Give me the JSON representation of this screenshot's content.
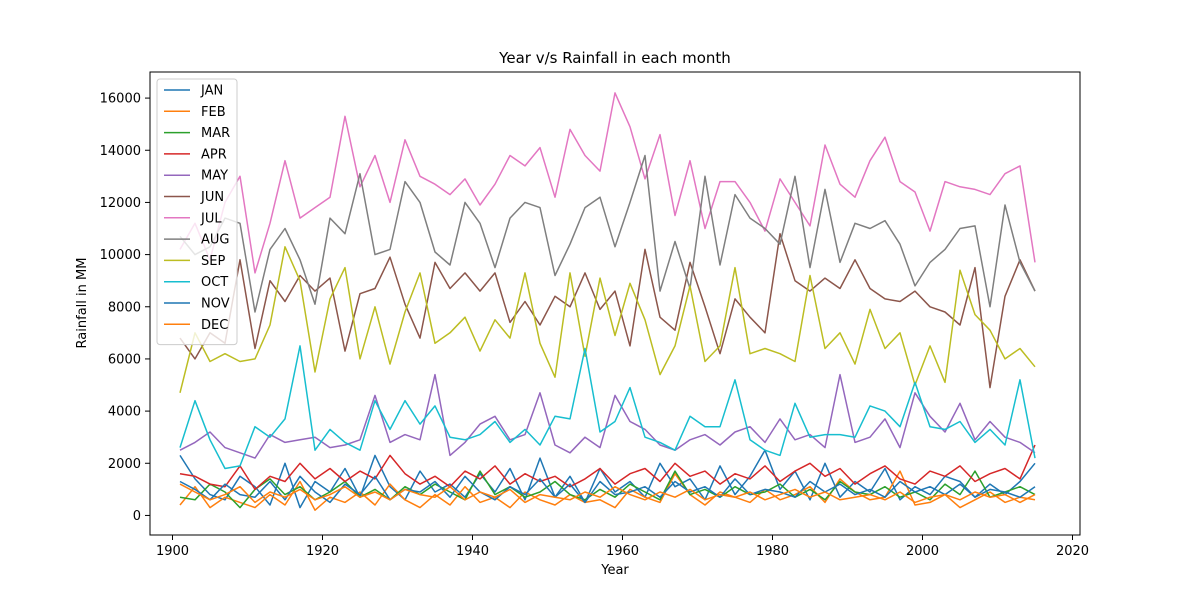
{
  "chart_data": {
    "type": "line",
    "title": "Year v/s Rainfall in each month",
    "xlabel": "Year",
    "ylabel": "Rainfall in MM",
    "xlim": [
      1897,
      2021
    ],
    "ylim": [
      -750,
      17000
    ],
    "xticks": [
      1900,
      1920,
      1940,
      1960,
      1980,
      2000,
      2020
    ],
    "yticks": [
      0,
      2000,
      4000,
      6000,
      8000,
      10000,
      12000,
      14000,
      16000
    ],
    "grid": false,
    "legend_position": "top-left",
    "x": [
      1901,
      1903,
      1905,
      1907,
      1909,
      1911,
      1913,
      1915,
      1917,
      1919,
      1921,
      1923,
      1925,
      1927,
      1929,
      1931,
      1933,
      1935,
      1937,
      1939,
      1941,
      1943,
      1945,
      1947,
      1949,
      1951,
      1953,
      1955,
      1957,
      1959,
      1961,
      1963,
      1965,
      1967,
      1969,
      1971,
      1973,
      1975,
      1977,
      1979,
      1981,
      1983,
      1985,
      1987,
      1989,
      1991,
      1993,
      1995,
      1997,
      1999,
      2001,
      2003,
      2005,
      2007,
      2009,
      2011,
      2013,
      2015
    ],
    "series": [
      {
        "name": "JAN",
        "color": "#1f77b4",
        "values": [
          2300,
          1400,
          800,
          600,
          1500,
          1100,
          400,
          2000,
          300,
          1300,
          900,
          1800,
          700,
          2300,
          1100,
          600,
          1700,
          900,
          1200,
          700,
          1600,
          900,
          1800,
          600,
          2200,
          700,
          1500,
          500,
          1800,
          900,
          1300,
          700,
          2000,
          1100,
          1400,
          600,
          1900,
          800,
          1500,
          2500,
          1000,
          1700,
          600,
          2000,
          700,
          1300,
          900,
          1800,
          600,
          1100,
          800,
          1500,
          1300,
          700,
          1200,
          800,
          1300,
          2000
        ]
      },
      {
        "name": "FEB",
        "color": "#ff7f0e",
        "values": [
          400,
          1100,
          300,
          700,
          500,
          300,
          800,
          400,
          1300,
          200,
          700,
          500,
          900,
          400,
          1200,
          600,
          300,
          800,
          400,
          1100,
          500,
          700,
          300,
          900,
          600,
          400,
          800,
          500,
          600,
          300,
          1000,
          700,
          500,
          1600,
          800,
          400,
          900,
          700,
          500,
          1000,
          600,
          800,
          1100,
          500,
          1400,
          900,
          600,
          700,
          1700,
          400,
          500,
          800,
          300,
          600,
          900,
          500,
          700,
          600
        ]
      },
      {
        "name": "MAR",
        "color": "#2ca02c",
        "values": [
          700,
          600,
          1200,
          900,
          300,
          1000,
          1400,
          800,
          1100,
          600,
          900,
          1300,
          700,
          1000,
          600,
          1100,
          800,
          1200,
          900,
          600,
          1700,
          800,
          1100,
          700,
          900,
          1300,
          800,
          600,
          1000,
          700,
          1200,
          900,
          600,
          1700,
          800,
          1000,
          700,
          1100,
          800,
          900,
          1200,
          700,
          1000,
          600,
          1300,
          900,
          800,
          1100,
          700,
          900,
          600,
          1200,
          800,
          1700,
          700,
          900,
          1100,
          800
        ]
      },
      {
        "name": "APR",
        "color": "#d62728",
        "values": [
          1600,
          1500,
          1200,
          1100,
          1900,
          1000,
          1500,
          1300,
          2000,
          1400,
          1800,
          1300,
          1700,
          1400,
          2300,
          1600,
          1200,
          1500,
          1100,
          1700,
          1400,
          1900,
          1200,
          1600,
          1300,
          1500,
          1100,
          1400,
          1800,
          1200,
          1600,
          1800,
          1300,
          2000,
          1500,
          1700,
          1200,
          1600,
          1400,
          1900,
          1300,
          1700,
          2000,
          1500,
          1800,
          1200,
          1600,
          1900,
          1400,
          1200,
          1700,
          1500,
          1900,
          1300,
          1600,
          1800,
          1400,
          2700
        ]
      },
      {
        "name": "MAY",
        "color": "#9467bd",
        "values": [
          2500,
          2800,
          3200,
          2600,
          2400,
          2200,
          3100,
          2800,
          2900,
          3000,
          2600,
          2700,
          2900,
          4600,
          2800,
          3100,
          2900,
          5400,
          2300,
          2800,
          3500,
          3800,
          2900,
          3100,
          4700,
          2700,
          2400,
          3000,
          2600,
          4600,
          3600,
          3300,
          2700,
          2500,
          2900,
          3100,
          2700,
          3200,
          3400,
          2800,
          3700,
          2900,
          3100,
          2600,
          5400,
          2800,
          3000,
          3700,
          2600,
          4700,
          3800,
          3200,
          4300,
          2900,
          3600,
          3000,
          2800,
          2400
        ]
      },
      {
        "name": "JUN",
        "color": "#8c564b",
        "values": [
          6800,
          6000,
          7000,
          6600,
          9800,
          6400,
          9000,
          8200,
          9200,
          8600,
          9100,
          6300,
          8500,
          8700,
          9900,
          8100,
          6800,
          9700,
          8700,
          9300,
          8600,
          9300,
          7400,
          8200,
          7300,
          8400,
          8000,
          9300,
          7900,
          8600,
          6500,
          10200,
          7600,
          7100,
          9700,
          8000,
          6200,
          8300,
          7600,
          7000,
          10800,
          9000,
          8600,
          9100,
          8700,
          9800,
          8700,
          8300,
          8200,
          8600,
          8000,
          7800,
          7300,
          9500,
          4900,
          8400,
          9800,
          8600
        ]
      },
      {
        "name": "JUL",
        "color": "#e377c2",
        "values": [
          10200,
          11200,
          9800,
          12000,
          13000,
          9300,
          11200,
          13600,
          11400,
          11800,
          12200,
          15300,
          12600,
          13800,
          12000,
          14400,
          13000,
          12700,
          12300,
          12900,
          11900,
          12700,
          13800,
          13400,
          14100,
          12200,
          14800,
          13800,
          13200,
          16200,
          14900,
          12900,
          14600,
          11500,
          13600,
          11000,
          12800,
          12800,
          12000,
          10900,
          12900,
          12000,
          11100,
          14200,
          12700,
          12200,
          13600,
          14500,
          12800,
          12400,
          10900,
          12800,
          12600,
          12500,
          12300,
          13100,
          13400,
          9700
        ]
      },
      {
        "name": "AUG",
        "color": "#7f7f7f",
        "values": [
          10700,
          10000,
          10300,
          11400,
          11200,
          7800,
          10200,
          11000,
          9800,
          8100,
          11400,
          10800,
          13100,
          10000,
          10200,
          12800,
          12000,
          10100,
          9600,
          12000,
          11200,
          9500,
          11400,
          12000,
          11800,
          9200,
          10400,
          11800,
          12200,
          10300,
          12000,
          13800,
          8600,
          10500,
          8700,
          13000,
          9600,
          12300,
          11400,
          11000,
          10400,
          13000,
          9500,
          12500,
          9700,
          11200,
          11000,
          11300,
          10400,
          8800,
          9700,
          10200,
          11000,
          11100,
          8000,
          11900,
          9700,
          8600
        ]
      },
      {
        "name": "SEP",
        "color": "#bcbd22",
        "values": [
          4700,
          7000,
          5900,
          6200,
          5900,
          6000,
          7300,
          10300,
          9000,
          5500,
          8300,
          9500,
          6000,
          8000,
          5800,
          7800,
          9300,
          6600,
          7000,
          7600,
          6300,
          7500,
          6800,
          9300,
          6600,
          5300,
          9300,
          6100,
          9100,
          6900,
          8900,
          7500,
          5400,
          6500,
          8800,
          5900,
          6500,
          9500,
          6200,
          6400,
          6200,
          5900,
          9200,
          6400,
          7000,
          5800,
          7900,
          6400,
          7000,
          5000,
          6500,
          5100,
          9400,
          7700,
          7100,
          6000,
          6400,
          5700
        ]
      },
      {
        "name": "OCT",
        "color": "#17becf",
        "values": [
          2600,
          4400,
          2900,
          1800,
          1900,
          3400,
          3000,
          3700,
          6500,
          2500,
          3300,
          2800,
          2500,
          4400,
          3300,
          4400,
          3500,
          4200,
          3000,
          2900,
          3100,
          3600,
          2800,
          3300,
          2700,
          3800,
          3700,
          6400,
          3200,
          3600,
          4900,
          3000,
          2800,
          2500,
          3800,
          3400,
          3400,
          5200,
          2900,
          2500,
          2300,
          4300,
          3000,
          3100,
          3100,
          3000,
          4200,
          4000,
          3400,
          5100,
          3400,
          3300,
          3600,
          2800,
          3300,
          2700,
          5200,
          2200
        ]
      },
      {
        "name": "NOV",
        "color": "#1f77b4",
        "values": [
          1300,
          1000,
          600,
          1200,
          800,
          700,
          1300,
          600,
          1500,
          900,
          500,
          1200,
          800,
          1500,
          600,
          1000,
          900,
          1300,
          700,
          1500,
          900,
          600,
          1100,
          800,
          1400,
          700,
          1200,
          500,
          1300,
          800,
          900,
          1100,
          700,
          1300,
          900,
          1100,
          700,
          1400,
          800,
          1000,
          900,
          700,
          1300,
          900,
          1200,
          800,
          1000,
          700,
          1300,
          900,
          1100,
          800,
          1200,
          700,
          1000,
          900,
          700,
          1100
        ]
      },
      {
        "name": "DEC",
        "color": "#ff7f0e",
        "values": [
          1200,
          900,
          600,
          800,
          1100,
          500,
          900,
          700,
          1000,
          600,
          800,
          1100,
          700,
          900,
          600,
          1000,
          800,
          700,
          1100,
          600,
          900,
          700,
          1000,
          500,
          800,
          700,
          600,
          900,
          700,
          1100,
          800,
          600,
          900,
          700,
          1000,
          600,
          800,
          700,
          900,
          600,
          800,
          1000,
          700,
          900,
          600,
          700,
          800,
          600,
          900,
          500,
          700,
          800,
          600,
          900,
          700,
          800,
          500,
          800
        ]
      }
    ]
  }
}
